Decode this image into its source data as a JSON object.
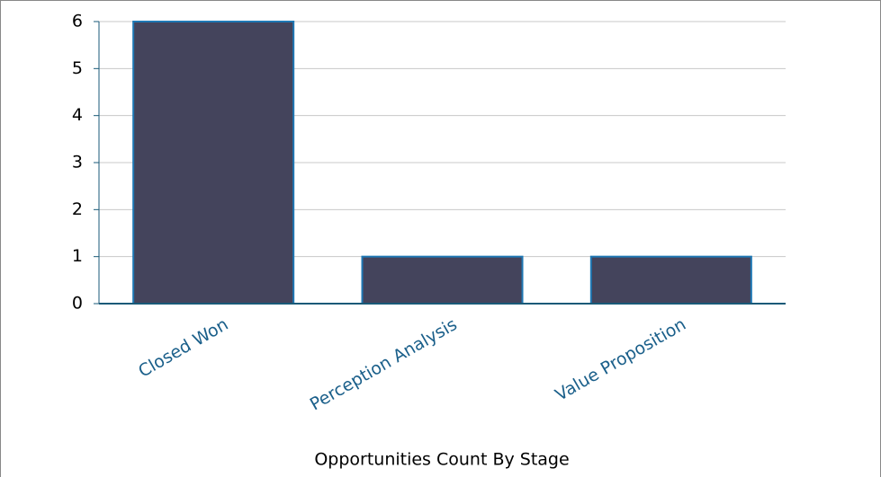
{
  "chart_data": {
    "type": "bar",
    "title": "Opportunities Count By Stage",
    "categories": [
      "Closed Won",
      "Perception Analysis",
      "Value Proposition"
    ],
    "values": [
      6,
      1,
      1
    ],
    "color": "#44445c",
    "ylim": [
      0,
      6
    ],
    "yticks": [
      0,
      1,
      2,
      3,
      4,
      5,
      6
    ],
    "grid": true
  }
}
